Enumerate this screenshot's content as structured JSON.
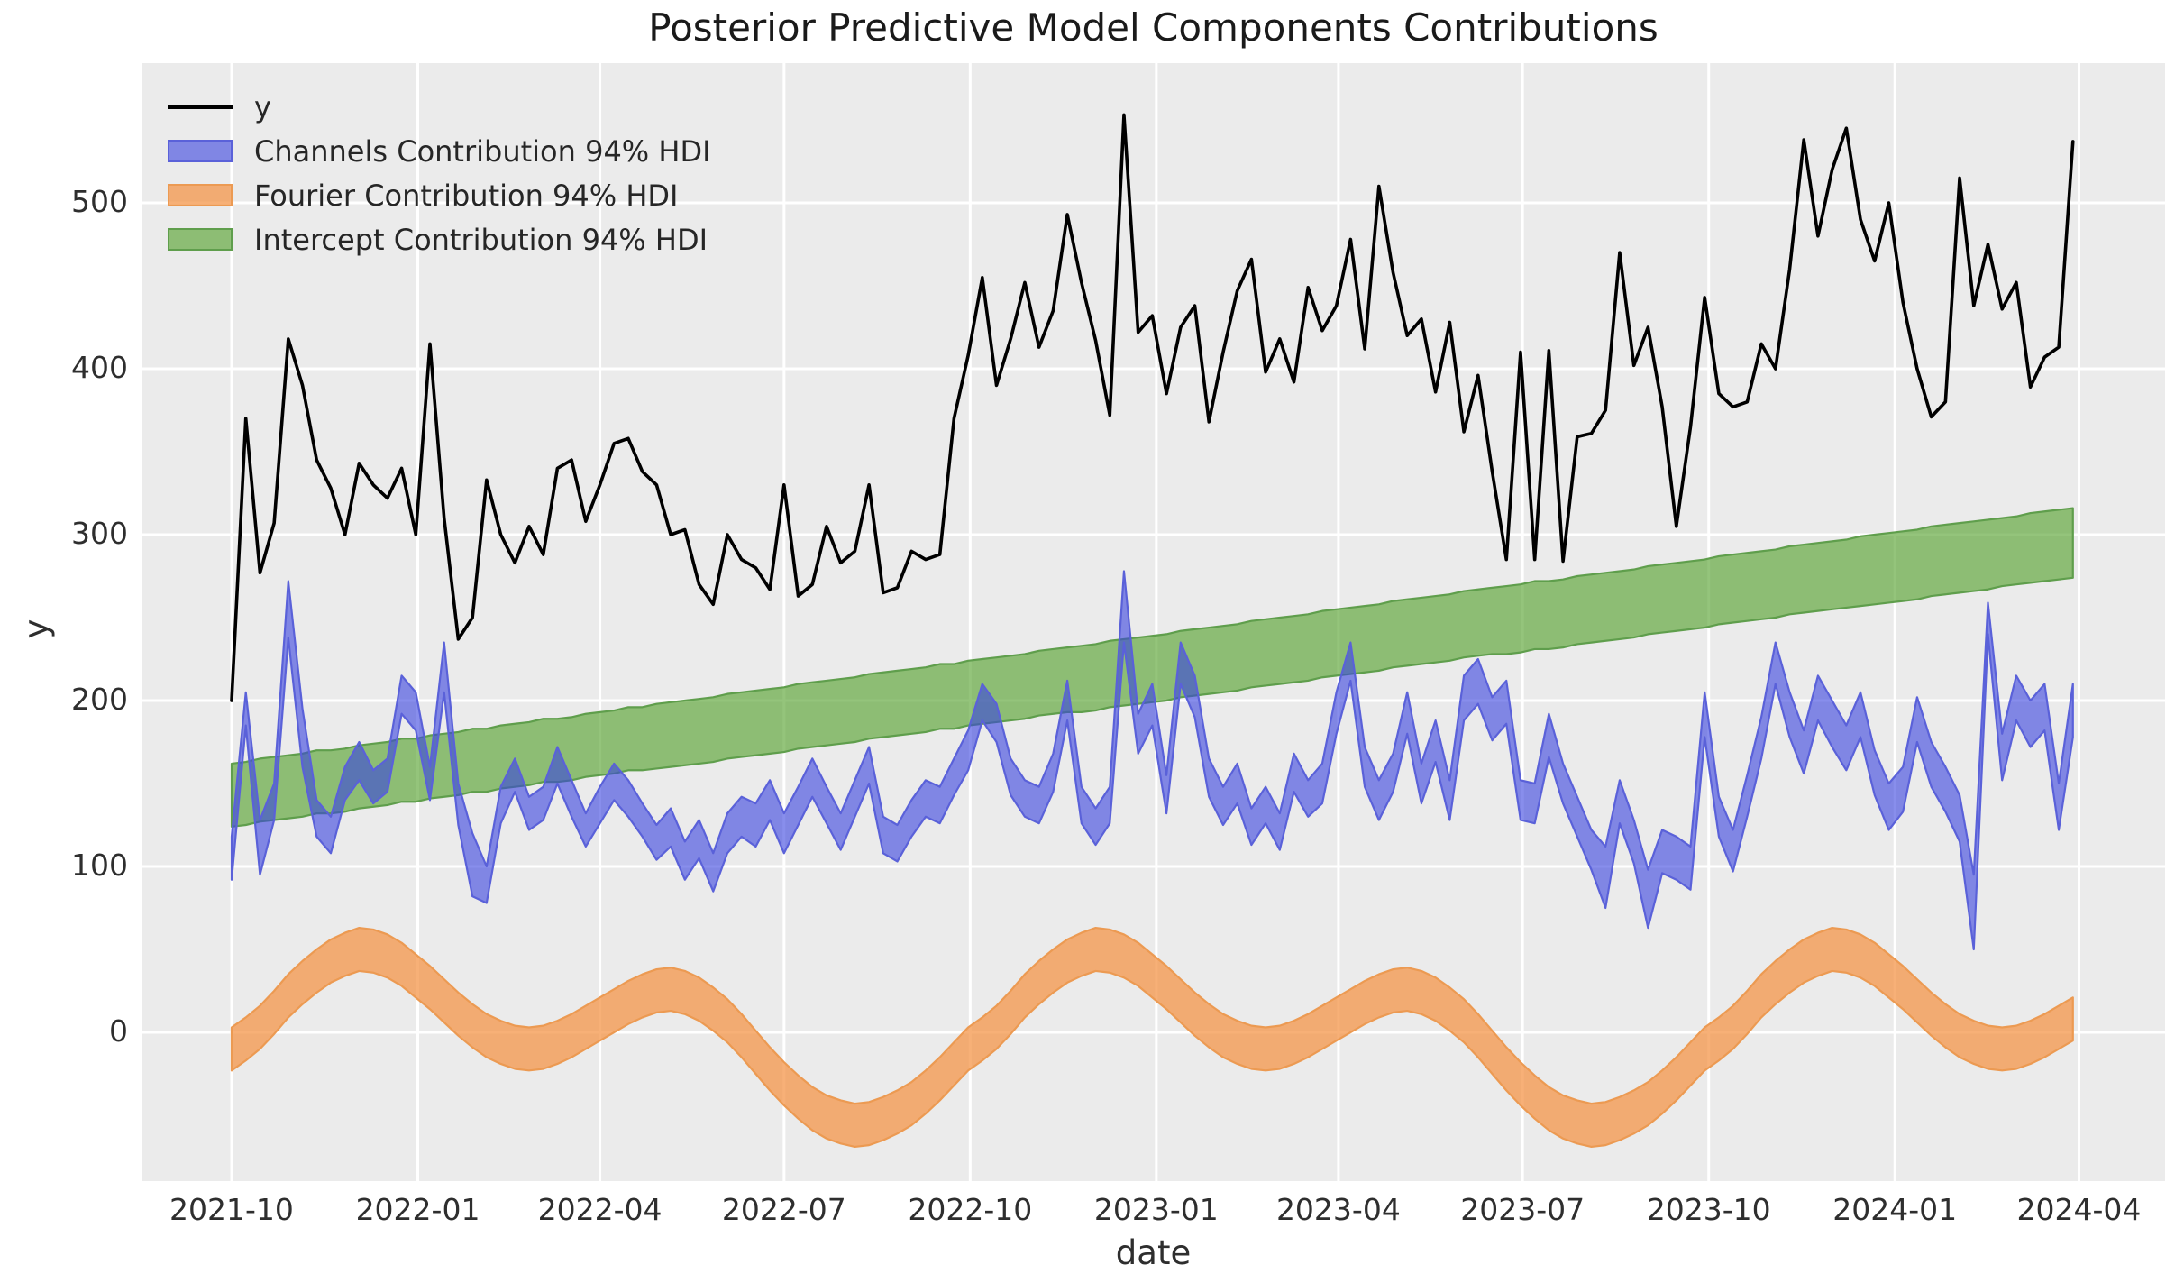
{
  "chart_data": {
    "type": "line",
    "title": "Posterior Predictive Model Components Contributions",
    "xlabel": "date",
    "ylabel": "y",
    "x": {
      "start_date": "2021-10-01",
      "freq_days": 7,
      "n": 131
    },
    "x_tick_labels": [
      "2021-10",
      "2022-01",
      "2022-04",
      "2022-07",
      "2022-10",
      "2023-01",
      "2023-04",
      "2023-07",
      "2023-10",
      "2024-01",
      "2024-04"
    ],
    "y_ticks": [
      0,
      100,
      200,
      300,
      400,
      500
    ],
    "ylim": [
      -88,
      585
    ],
    "grid": true,
    "plot_bg": "#ebebeb",
    "grid_color": "#ffffff",
    "legend": {
      "position": "upper left",
      "items": [
        {
          "label": "y",
          "type": "line",
          "color": "#000000"
        },
        {
          "label": "Channels Contribution 94% HDI",
          "type": "band",
          "color": "#6b70e0"
        },
        {
          "label": "Fourier Contribution 94% HDI",
          "type": "band",
          "color": "#f4a460"
        },
        {
          "label": "Intercept Contribution 94% HDI",
          "type": "band",
          "color": "#79ab5c"
        }
      ]
    },
    "series": [
      {
        "name": "Fourier Contribution 94% HDI",
        "type": "band",
        "fill": "rgba(244,150,73,0.75)",
        "edge": "#ec9a52",
        "lo": [
          -23,
          -17,
          -10,
          -1,
          9,
          17,
          24,
          30,
          34,
          37,
          36,
          33,
          28,
          21,
          14,
          6,
          -2,
          -9,
          -15,
          -19,
          -22,
          -23,
          -22,
          -19,
          -15,
          -10,
          -5,
          0,
          5,
          9,
          12,
          13,
          11,
          7,
          1,
          -6,
          -15,
          -25,
          -35,
          -44,
          -52,
          -59,
          -64,
          -67,
          -69,
          -68,
          -65,
          -61,
          -56,
          -49,
          -41,
          -32,
          -23,
          -17,
          -10,
          -1,
          9,
          17,
          24,
          30,
          34,
          37,
          36,
          33,
          28,
          21,
          14,
          6,
          -2,
          -9,
          -15,
          -19,
          -22,
          -23,
          -22,
          -19,
          -15,
          -10,
          -5,
          0,
          5,
          9,
          12,
          13,
          11,
          7,
          1,
          -6,
          -15,
          -25,
          -35,
          -44,
          -52,
          -59,
          -64,
          -67,
          -69,
          -68,
          -65,
          -61,
          -56,
          -49,
          -41,
          -32,
          -23,
          -17,
          -10,
          -1,
          9,
          17,
          24,
          30,
          34,
          37,
          36,
          33,
          28,
          21,
          14,
          6,
          -2,
          -9,
          -15,
          -19,
          -22,
          -23,
          -22,
          -19,
          -15,
          -10,
          -5
        ],
        "hi": [
          3,
          9,
          16,
          25,
          35,
          43,
          50,
          56,
          60,
          63,
          62,
          59,
          54,
          47,
          40,
          32,
          24,
          17,
          11,
          7,
          4,
          3,
          4,
          7,
          11,
          16,
          21,
          26,
          31,
          35,
          38,
          39,
          37,
          33,
          27,
          20,
          11,
          1,
          -9,
          -18,
          -26,
          -33,
          -38,
          -41,
          -43,
          -42,
          -39,
          -35,
          -30,
          -23,
          -15,
          -6,
          3,
          9,
          16,
          25,
          35,
          43,
          50,
          56,
          60,
          63,
          62,
          59,
          54,
          47,
          40,
          32,
          24,
          17,
          11,
          7,
          4,
          3,
          4,
          7,
          11,
          16,
          21,
          26,
          31,
          35,
          38,
          39,
          37,
          33,
          27,
          20,
          11,
          1,
          -9,
          -18,
          -26,
          -33,
          -38,
          -41,
          -43,
          -42,
          -39,
          -35,
          -30,
          -23,
          -15,
          -6,
          3,
          9,
          16,
          25,
          35,
          43,
          50,
          56,
          60,
          63,
          62,
          59,
          54,
          47,
          40,
          32,
          24,
          17,
          11,
          7,
          4,
          3,
          4,
          7,
          11,
          16,
          21
        ]
      },
      {
        "name": "Intercept Contribution 94% HDI",
        "type": "band",
        "fill": "rgba(90,164,52,0.65)",
        "edge": "#5f9e4c",
        "lo": [
          124,
          125,
          127,
          128,
          129,
          130,
          132,
          132,
          133,
          135,
          136,
          137,
          139,
          139,
          141,
          142,
          143,
          145,
          145,
          147,
          148,
          149,
          151,
          151,
          152,
          154,
          155,
          156,
          158,
          158,
          159,
          160,
          161,
          162,
          163,
          165,
          166,
          167,
          168,
          169,
          171,
          172,
          173,
          174,
          175,
          177,
          178,
          179,
          180,
          181,
          183,
          183,
          185,
          186,
          187,
          188,
          189,
          191,
          192,
          193,
          193,
          194,
          196,
          197,
          198,
          199,
          200,
          202,
          203,
          204,
          205,
          206,
          208,
          209,
          210,
          211,
          212,
          214,
          215,
          216,
          217,
          218,
          220,
          221,
          222,
          223,
          224,
          226,
          227,
          228,
          228,
          229,
          231,
          231,
          232,
          234,
          235,
          236,
          237,
          238,
          240,
          241,
          242,
          243,
          244,
          246,
          247,
          248,
          249,
          250,
          252,
          253,
          254,
          255,
          256,
          257,
          258,
          259,
          260,
          261,
          263,
          264,
          265,
          266,
          267,
          269,
          270,
          271,
          272,
          273,
          274
        ],
        "hi": [
          162,
          163,
          165,
          166,
          167,
          168,
          170,
          170,
          171,
          173,
          174,
          175,
          177,
          177,
          179,
          180,
          181,
          183,
          183,
          185,
          186,
          187,
          189,
          189,
          190,
          192,
          193,
          194,
          196,
          196,
          198,
          199,
          200,
          201,
          202,
          204,
          205,
          206,
          207,
          208,
          210,
          211,
          212,
          213,
          214,
          216,
          217,
          218,
          219,
          220,
          222,
          222,
          224,
          225,
          226,
          227,
          228,
          230,
          231,
          232,
          233,
          234,
          236,
          237,
          238,
          239,
          240,
          242,
          243,
          244,
          245,
          246,
          248,
          249,
          250,
          251,
          252,
          254,
          255,
          256,
          257,
          258,
          260,
          261,
          262,
          263,
          264,
          266,
          267,
          268,
          269,
          270,
          272,
          272,
          273,
          275,
          276,
          277,
          278,
          279,
          281,
          282,
          283,
          284,
          285,
          287,
          288,
          289,
          290,
          291,
          293,
          294,
          295,
          296,
          297,
          299,
          300,
          301,
          302,
          303,
          305,
          306,
          307,
          308,
          309,
          310,
          311,
          313,
          314,
          315,
          316
        ]
      },
      {
        "name": "Channels Contribution 94% HDI",
        "type": "band",
        "fill": "rgba(57,66,223,0.6)",
        "edge": "#5a61d9",
        "lo": [
          92,
          185,
          95,
          128,
          238,
          160,
          118,
          108,
          140,
          152,
          138,
          145,
          192,
          182,
          140,
          205,
          125,
          82,
          78,
          126,
          145,
          122,
          128,
          150,
          130,
          112,
          126,
          140,
          130,
          118,
          104,
          112,
          92,
          105,
          85,
          108,
          118,
          112,
          128,
          108,
          125,
          142,
          126,
          110,
          130,
          150,
          108,
          103,
          118,
          130,
          126,
          143,
          158,
          188,
          175,
          143,
          130,
          126,
          145,
          188,
          126,
          113,
          126,
          235,
          168,
          185,
          132,
          210,
          190,
          142,
          125,
          138,
          113,
          126,
          110,
          145,
          130,
          138,
          180,
          212,
          148,
          128,
          145,
          180,
          138,
          163,
          128,
          188,
          198,
          176,
          186,
          128,
          126,
          166,
          138,
          118,
          98,
          75,
          126,
          102,
          63,
          96,
          92,
          86,
          178,
          118,
          97,
          130,
          165,
          210,
          178,
          156,
          188,
          172,
          158,
          178,
          143,
          122,
          133,
          175,
          148,
          133,
          115,
          50,
          240,
          152,
          188,
          172,
          182,
          122,
          178
        ],
        "hi": [
          118,
          205,
          128,
          150,
          272,
          195,
          140,
          130,
          160,
          175,
          158,
          165,
          215,
          205,
          160,
          235,
          150,
          120,
          100,
          148,
          165,
          142,
          148,
          172,
          152,
          132,
          148,
          162,
          152,
          138,
          125,
          135,
          115,
          128,
          108,
          132,
          142,
          138,
          152,
          132,
          148,
          165,
          148,
          132,
          152,
          172,
          130,
          125,
          140,
          152,
          148,
          165,
          182,
          210,
          198,
          165,
          152,
          148,
          168,
          212,
          148,
          135,
          148,
          278,
          192,
          210,
          155,
          235,
          215,
          165,
          148,
          162,
          135,
          148,
          132,
          168,
          152,
          162,
          205,
          235,
          172,
          152,
          168,
          205,
          162,
          188,
          152,
          215,
          225,
          202,
          212,
          152,
          150,
          192,
          162,
          142,
          122,
          112,
          152,
          128,
          98,
          122,
          118,
          112,
          205,
          142,
          122,
          155,
          190,
          235,
          205,
          182,
          215,
          200,
          185,
          205,
          170,
          150,
          160,
          202,
          175,
          160,
          143,
          95,
          259,
          180,
          215,
          200,
          210,
          150,
          210
        ]
      },
      {
        "name": "y",
        "type": "line",
        "color": "#000000",
        "values": [
          200,
          370,
          277,
          307,
          418,
          390,
          345,
          328,
          300,
          343,
          330,
          322,
          340,
          300,
          415,
          310,
          237,
          250,
          333,
          300,
          283,
          305,
          288,
          340,
          345,
          308,
          330,
          355,
          358,
          338,
          330,
          300,
          303,
          270,
          258,
          300,
          285,
          280,
          267,
          330,
          263,
          270,
          305,
          283,
          290,
          330,
          265,
          268,
          290,
          285,
          288,
          370,
          408,
          455,
          390,
          418,
          452,
          413,
          435,
          493,
          452,
          417,
          372,
          553,
          422,
          432,
          385,
          425,
          438,
          368,
          410,
          447,
          466,
          398,
          418,
          392,
          449,
          423,
          438,
          478,
          412,
          510,
          458,
          420,
          430,
          386,
          428,
          362,
          396,
          338,
          285,
          410,
          285,
          411,
          284,
          359,
          361,
          375,
          470,
          402,
          425,
          377,
          305,
          365,
          443,
          385,
          377,
          380,
          415,
          400,
          460,
          538,
          480,
          520,
          545,
          490,
          465,
          500,
          440,
          400,
          371,
          380,
          515,
          438,
          475,
          436,
          452,
          389,
          407,
          413,
          537
        ]
      }
    ]
  }
}
